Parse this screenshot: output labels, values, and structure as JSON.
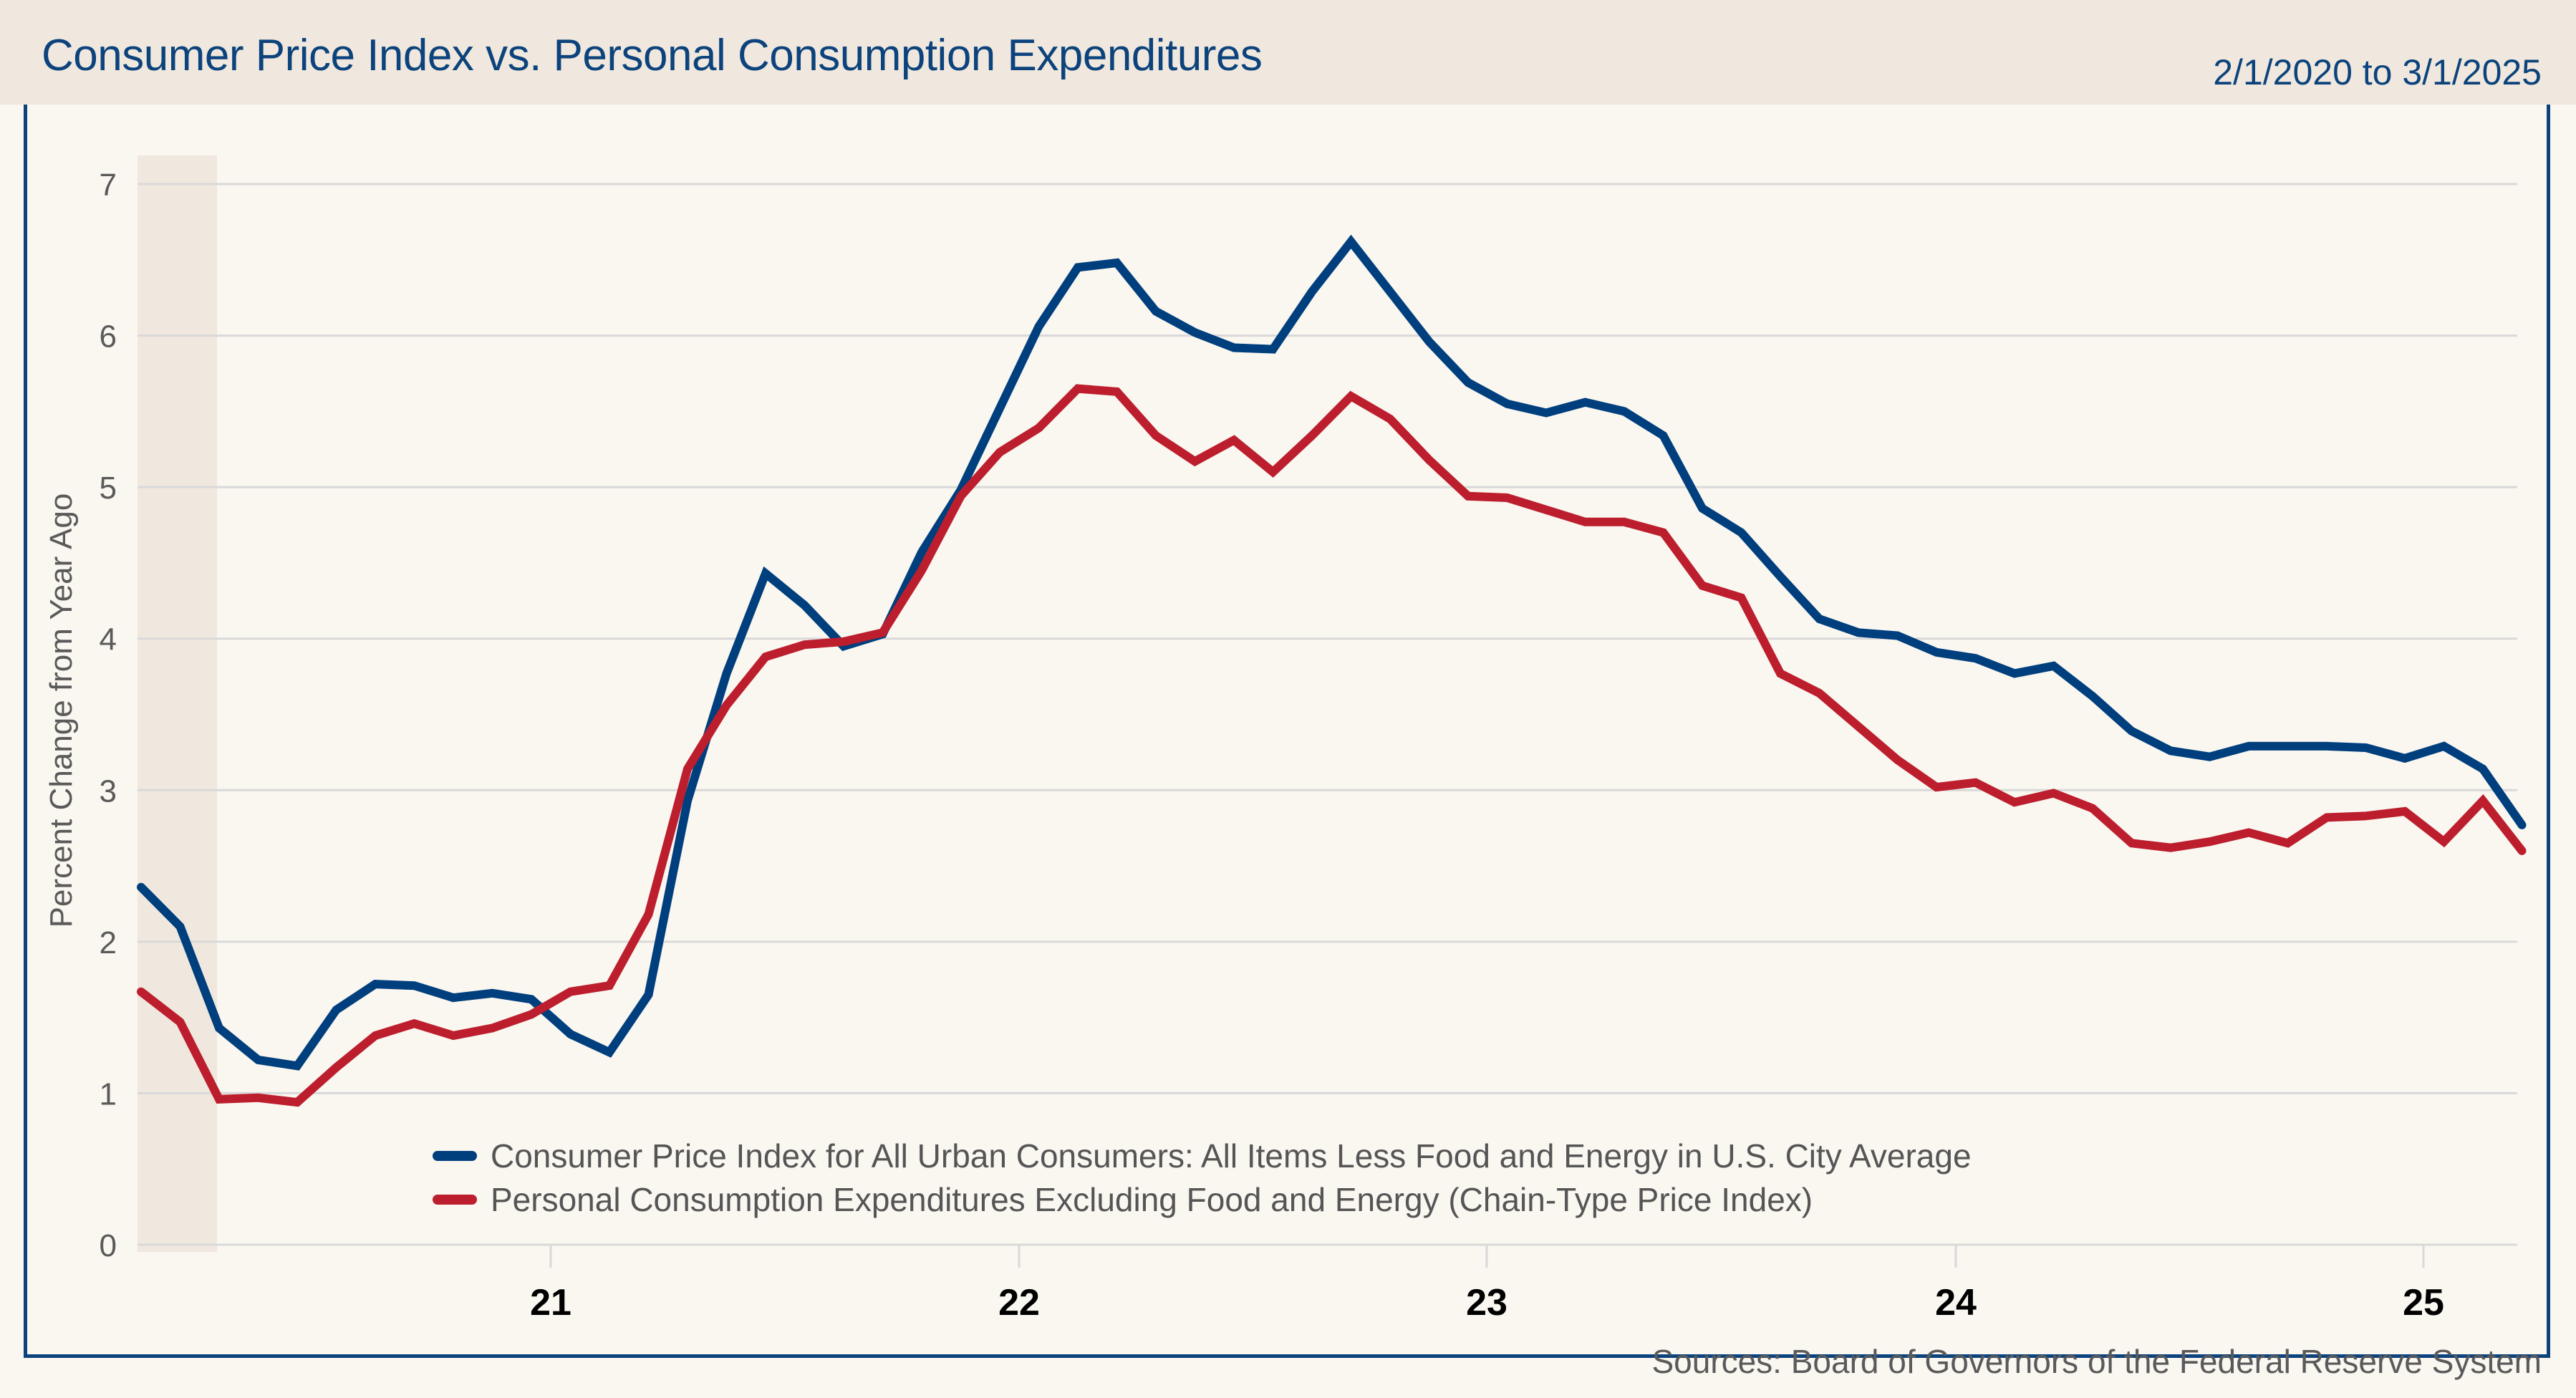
{
  "header": {
    "title": "Consumer Price Index vs. Personal Consumption Expenditures",
    "date_range": "2/1/2020 to 3/1/2025"
  },
  "footer": {
    "sources": "Sources: Board of Governors of the Federal Reserve System"
  },
  "colors": {
    "cpi": "#003f7d",
    "pce": "#bc1e2d",
    "title": "#0c437c",
    "recession_shade": "#f0e8de",
    "grid": "#d9d9d9"
  },
  "chart_data": {
    "type": "line",
    "title": "Consumer Price Index vs. Personal Consumption Expenditures",
    "subtitle": "2/1/2020 to 3/1/2025",
    "xlabel": "",
    "ylabel": "Percent Change from Year Ago",
    "ylim": [
      0,
      7
    ],
    "yticks": [
      "0",
      "1",
      "2",
      "3",
      "4",
      "5",
      "6",
      "7"
    ],
    "grid": true,
    "x_start": "2020-02",
    "x_end": "2025-03",
    "x_frequency": "monthly",
    "xticks": [
      {
        "label": "21",
        "month_index": 11
      },
      {
        "label": "22",
        "month_index": 23
      },
      {
        "label": "23",
        "month_index": 35
      },
      {
        "label": "24",
        "month_index": 47
      },
      {
        "label": "25",
        "month_index": 59
      }
    ],
    "shaded_regions": [
      {
        "label": "recession",
        "start_index": 0,
        "end_index": 2
      }
    ],
    "legend_position": "bottom-center",
    "series": [
      {
        "name": "Consumer Price Index for All Urban Consumers: All Items Less Food and Energy in U.S. City Average",
        "key": "cpi",
        "values": [
          2.36,
          2.1,
          1.43,
          1.22,
          1.18,
          1.55,
          1.72,
          1.71,
          1.63,
          1.66,
          1.62,
          1.39,
          1.27,
          1.65,
          2.93,
          3.77,
          4.43,
          4.22,
          3.95,
          4.03,
          4.57,
          4.98,
          5.52,
          6.06,
          6.45,
          6.48,
          6.16,
          6.02,
          5.92,
          5.91,
          6.29,
          6.62,
          6.29,
          5.96,
          5.69,
          5.55,
          5.49,
          5.56,
          5.5,
          5.34,
          4.86,
          4.7,
          4.41,
          4.13,
          4.04,
          4.02,
          3.91,
          3.87,
          3.77,
          3.82,
          3.62,
          3.39,
          3.26,
          3.22,
          3.29,
          3.29,
          3.29,
          3.28,
          3.21,
          3.29,
          3.14,
          2.77
        ]
      },
      {
        "name": "Personal Consumption Expenditures Excluding Food and Energy (Chain-Type Price Index)",
        "key": "pce",
        "values": [
          1.67,
          1.47,
          0.96,
          0.97,
          0.94,
          1.17,
          1.38,
          1.46,
          1.38,
          1.43,
          1.52,
          1.67,
          1.71,
          2.18,
          3.14,
          3.56,
          3.88,
          3.96,
          3.98,
          4.04,
          4.45,
          4.94,
          5.23,
          5.39,
          5.65,
          5.63,
          5.34,
          5.17,
          5.31,
          5.1,
          5.34,
          5.6,
          5.45,
          5.18,
          4.94,
          4.93,
          4.85,
          4.77,
          4.77,
          4.7,
          4.35,
          4.27,
          3.77,
          3.64,
          3.42,
          3.2,
          3.02,
          3.05,
          2.92,
          2.98,
          2.88,
          2.65,
          2.62,
          2.66,
          2.72,
          2.65,
          2.82,
          2.83,
          2.86,
          2.66,
          2.93,
          2.6
        ]
      }
    ]
  }
}
